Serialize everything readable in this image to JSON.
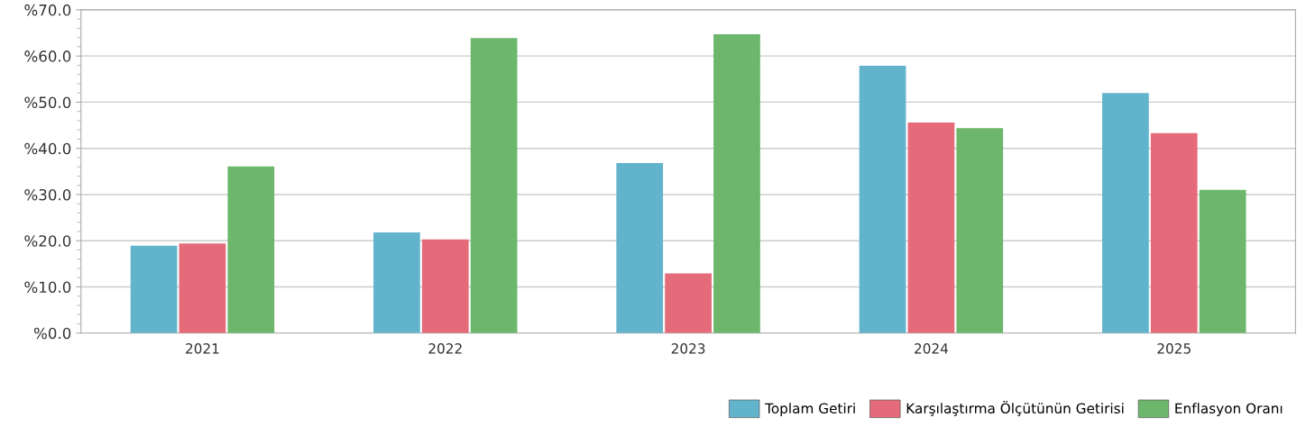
{
  "chart_data": {
    "type": "bar",
    "categories": [
      "2021",
      "2022",
      "2023",
      "2024",
      "2025"
    ],
    "series": [
      {
        "name": "Toplam Getiri",
        "color": "#62b4cc",
        "values": [
          18.9,
          21.8,
          36.8,
          57.9,
          52.0
        ]
      },
      {
        "name": "Karşılaştırma Ölçütünün Getirisi",
        "color": "#e56b7b",
        "values": [
          19.4,
          20.3,
          12.9,
          45.6,
          43.3
        ]
      },
      {
        "name": "Enflasyon Oranı",
        "color": "#6cb76c",
        "values": [
          36.1,
          63.9,
          64.7,
          44.4,
          31.0
        ]
      }
    ],
    "ylim": [
      0,
      70
    ],
    "yticks": [
      {
        "value": 0,
        "label": "%0.0"
      },
      {
        "value": 10,
        "label": "%10.0"
      },
      {
        "value": 20,
        "label": "%20.0"
      },
      {
        "value": 30,
        "label": "%30.0"
      },
      {
        "value": 40,
        "label": "%40.0"
      },
      {
        "value": 50,
        "label": "%50.0"
      },
      {
        "value": 60,
        "label": "%60.0"
      },
      {
        "value": 70,
        "label": "%70.0"
      }
    ],
    "grid": "y",
    "legend": "bottom right"
  }
}
